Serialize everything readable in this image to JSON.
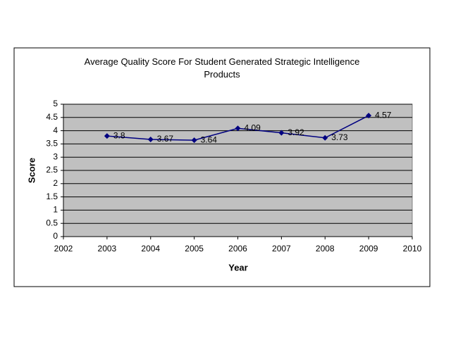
{
  "chart_data": {
    "type": "line",
    "title": "Average Quality Score For Student Generated Strategic Intelligence Products",
    "x_label": "Year",
    "y_label": "Score",
    "x": [
      2003,
      2004,
      2005,
      2006,
      2007,
      2008,
      2009
    ],
    "series": [
      {
        "name": "Score",
        "color": "#000080",
        "values": [
          3.8,
          3.67,
          3.64,
          4.09,
          3.92,
          3.73,
          4.57
        ]
      }
    ],
    "xlim": [
      2002,
      2010
    ],
    "xticks": [
      2002,
      2003,
      2004,
      2005,
      2006,
      2007,
      2008,
      2009,
      2010
    ],
    "ylim": [
      0,
      5
    ],
    "yticks": [
      0,
      0.5,
      1,
      1.5,
      2,
      2.5,
      3,
      3.5,
      4,
      4.5,
      5
    ],
    "grid": true
  }
}
